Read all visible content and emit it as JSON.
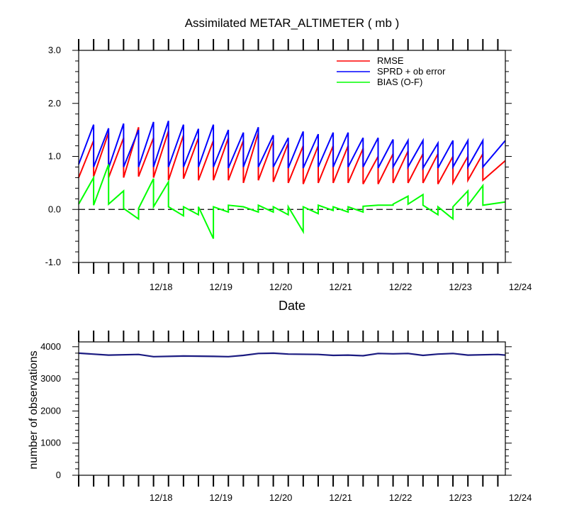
{
  "chart_data": [
    {
      "type": "line",
      "title": "Assimilated METAR_ALTIMETER ( mb )",
      "xlabel": "Date",
      "ylabel": "",
      "xlim": [
        "12/17 03:00",
        "12/24 06:00"
      ],
      "ylim": [
        -1.0,
        3.0
      ],
      "y_ticks": [
        "-1.0",
        "0.0",
        "1.0",
        "2.0",
        "3.0"
      ],
      "x_tick_labels": [
        "12/18",
        "12/19",
        "12/20",
        "12/21",
        "12/22",
        "12/23",
        "12/24"
      ],
      "x_minor_tick_interval_hours": 6,
      "legend_position": "top-right",
      "zero_line": "dashed",
      "series": [
        {
          "name": "RMSE",
          "color": "#ff0000",
          "points": [
            [
              "12/17 03:00",
              0.6
            ],
            [
              "12/17 09:00",
              1.3
            ],
            [
              "12/17 09:00",
              0.62
            ],
            [
              "12/17 15:00",
              1.45
            ],
            [
              "12/17 15:00",
              0.6
            ],
            [
              "12/17 21:00",
              1.35
            ],
            [
              "12/17 21:00",
              0.6
            ],
            [
              "12/18 03:00",
              1.55
            ],
            [
              "12/18 03:00",
              0.62
            ],
            [
              "12/18 09:00",
              1.35
            ],
            [
              "12/18 09:00",
              0.6
            ],
            [
              "12/18 15:00",
              1.48
            ],
            [
              "12/18 15:00",
              0.55
            ],
            [
              "12/18 21:00",
              1.4
            ],
            [
              "12/18 21:00",
              0.58
            ],
            [
              "12/19 03:00",
              1.35
            ],
            [
              "12/19 03:00",
              0.55
            ],
            [
              "12/19 09:00",
              1.3
            ],
            [
              "12/19 09:00",
              0.55
            ],
            [
              "12/19 15:00",
              1.35
            ],
            [
              "12/19 15:00",
              0.55
            ],
            [
              "12/19 21:00",
              1.3
            ],
            [
              "12/19 21:00",
              0.5
            ],
            [
              "12/20 03:00",
              1.45
            ],
            [
              "12/20 03:00",
              0.55
            ],
            [
              "12/20 09:00",
              1.3
            ],
            [
              "12/20 09:00",
              0.52
            ],
            [
              "12/20 15:00",
              1.25
            ],
            [
              "12/20 15:00",
              0.5
            ],
            [
              "12/20 21:00",
              1.2
            ],
            [
              "12/20 21:00",
              0.48
            ],
            [
              "12/21 03:00",
              1.2
            ],
            [
              "12/21 03:00",
              0.5
            ],
            [
              "12/21 09:00",
              1.2
            ],
            [
              "12/21 09:00",
              0.5
            ],
            [
              "12/21 15:00",
              1.2
            ],
            [
              "12/21 15:00",
              0.5
            ],
            [
              "12/21 21:00",
              1.15
            ],
            [
              "12/21 21:00",
              0.48
            ],
            [
              "12/22 03:00",
              1.0
            ],
            [
              "12/22 03:00",
              0.48
            ],
            [
              "12/22 09:00",
              1.05
            ],
            [
              "12/22 09:00",
              0.5
            ],
            [
              "12/22 15:00",
              1.1
            ],
            [
              "12/22 15:00",
              0.5
            ],
            [
              "12/22 21:00",
              1.05
            ],
            [
              "12/22 21:00",
              0.5
            ],
            [
              "12/23 03:00",
              1.05
            ],
            [
              "12/23 03:00",
              0.48
            ],
            [
              "12/23 09:00",
              1.0
            ],
            [
              "12/23 09:00",
              0.5
            ],
            [
              "12/23 15:00",
              1.0
            ],
            [
              "12/23 15:00",
              0.55
            ],
            [
              "12/23 21:00",
              1.05
            ],
            [
              "12/23 21:00",
              0.55
            ],
            [
              "12/24 06:00",
              0.92
            ]
          ]
        },
        {
          "name": "SPRD + ob error",
          "color": "#0000ff",
          "points": [
            [
              "12/17 03:00",
              0.85
            ],
            [
              "12/17 09:00",
              1.6
            ],
            [
              "12/17 09:00",
              0.8
            ],
            [
              "12/17 15:00",
              1.53
            ],
            [
              "12/17 15:00",
              0.78
            ],
            [
              "12/17 21:00",
              1.62
            ],
            [
              "12/17 21:00",
              0.8
            ],
            [
              "12/18 03:00",
              1.5
            ],
            [
              "12/18 03:00",
              0.8
            ],
            [
              "12/18 09:00",
              1.65
            ],
            [
              "12/18 09:00",
              0.8
            ],
            [
              "12/18 15:00",
              1.67
            ],
            [
              "12/18 15:00",
              0.8
            ],
            [
              "12/18 21:00",
              1.6
            ],
            [
              "12/18 21:00",
              0.8
            ],
            [
              "12/19 03:00",
              1.52
            ],
            [
              "12/19 03:00",
              0.8
            ],
            [
              "12/19 09:00",
              1.6
            ],
            [
              "12/19 09:00",
              0.8
            ],
            [
              "12/19 15:00",
              1.5
            ],
            [
              "12/19 15:00",
              0.78
            ],
            [
              "12/19 21:00",
              1.45
            ],
            [
              "12/19 21:00",
              0.8
            ],
            [
              "12/20 03:00",
              1.55
            ],
            [
              "12/20 03:00",
              0.8
            ],
            [
              "12/20 09:00",
              1.4
            ],
            [
              "12/20 09:00",
              0.8
            ],
            [
              "12/20 15:00",
              1.35
            ],
            [
              "12/20 15:00",
              0.78
            ],
            [
              "12/20 21:00",
              1.47
            ],
            [
              "12/20 21:00",
              0.78
            ],
            [
              "12/21 03:00",
              1.42
            ],
            [
              "12/21 03:00",
              0.8
            ],
            [
              "12/21 09:00",
              1.45
            ],
            [
              "12/21 09:00",
              0.8
            ],
            [
              "12/21 15:00",
              1.45
            ],
            [
              "12/21 15:00",
              0.8
            ],
            [
              "12/21 21:00",
              1.35
            ],
            [
              "12/21 21:00",
              0.8
            ],
            [
              "12/22 03:00",
              1.35
            ],
            [
              "12/22 03:00",
              0.78
            ],
            [
              "12/22 09:00",
              1.32
            ],
            [
              "12/22 09:00",
              0.8
            ],
            [
              "12/22 15:00",
              1.3
            ],
            [
              "12/22 15:00",
              0.8
            ],
            [
              "12/22 21:00",
              1.3
            ],
            [
              "12/22 21:00",
              0.78
            ],
            [
              "12/23 03:00",
              1.25
            ],
            [
              "12/23 03:00",
              0.78
            ],
            [
              "12/23 09:00",
              1.3
            ],
            [
              "12/23 09:00",
              0.8
            ],
            [
              "12/23 15:00",
              1.3
            ],
            [
              "12/23 15:00",
              0.8
            ],
            [
              "12/23 21:00",
              1.3
            ],
            [
              "12/23 21:00",
              0.8
            ],
            [
              "12/24 06:00",
              1.3
            ]
          ]
        },
        {
          "name": "BIAS (O-F)",
          "color": "#00ff00",
          "points": [
            [
              "12/17 03:00",
              0.1
            ],
            [
              "12/17 09:00",
              0.6
            ],
            [
              "12/17 09:00",
              0.08
            ],
            [
              "12/17 15:00",
              0.85
            ],
            [
              "12/17 15:00",
              0.1
            ],
            [
              "12/17 21:00",
              0.35
            ],
            [
              "12/17 21:00",
              0.02
            ],
            [
              "12/18 03:00",
              -0.18
            ],
            [
              "12/18 03:00",
              0.02
            ],
            [
              "12/18 09:00",
              0.58
            ],
            [
              "12/18 09:00",
              0.05
            ],
            [
              "12/18 15:00",
              0.52
            ],
            [
              "12/18 15:00",
              0.05
            ],
            [
              "12/18 21:00",
              -0.12
            ],
            [
              "12/18 21:00",
              0.05
            ],
            [
              "12/19 03:00",
              -0.1
            ],
            [
              "12/19 03:00",
              0.05
            ],
            [
              "12/19 09:00",
              -0.55
            ],
            [
              "12/19 09:00",
              0.05
            ],
            [
              "12/19 15:00",
              -0.05
            ],
            [
              "12/19 15:00",
              0.08
            ],
            [
              "12/19 21:00",
              0.05
            ],
            [
              "12/19 21:00",
              0.05
            ],
            [
              "12/20 03:00",
              -0.05
            ],
            [
              "12/20 03:00",
              0.08
            ],
            [
              "12/20 09:00",
              -0.05
            ],
            [
              "12/20 09:00",
              0.05
            ],
            [
              "12/20 15:00",
              -0.1
            ],
            [
              "12/20 15:00",
              0.05
            ],
            [
              "12/20 21:00",
              -0.42
            ],
            [
              "12/20 21:00",
              0.05
            ],
            [
              "12/21 03:00",
              -0.08
            ],
            [
              "12/21 03:00",
              0.08
            ],
            [
              "12/21 09:00",
              -0.02
            ],
            [
              "12/21 09:00",
              0.05
            ],
            [
              "12/21 15:00",
              -0.05
            ],
            [
              "12/21 15:00",
              0.05
            ],
            [
              "12/21 21:00",
              -0.05
            ],
            [
              "12/21 21:00",
              0.06
            ],
            [
              "12/22 03:00",
              0.08
            ],
            [
              "12/22 03:00",
              0.08
            ],
            [
              "12/22 09:00",
              0.08
            ],
            [
              "12/22 09:00",
              0.1
            ],
            [
              "12/22 15:00",
              0.25
            ],
            [
              "12/22 15:00",
              0.1
            ],
            [
              "12/22 21:00",
              0.28
            ],
            [
              "12/22 21:00",
              0.08
            ],
            [
              "12/23 03:00",
              -0.1
            ],
            [
              "12/23 03:00",
              0.05
            ],
            [
              "12/23 09:00",
              -0.18
            ],
            [
              "12/23 09:00",
              0.05
            ],
            [
              "12/23 15:00",
              0.35
            ],
            [
              "12/23 15:00",
              0.08
            ],
            [
              "12/23 21:00",
              0.45
            ],
            [
              "12/23 21:00",
              0.08
            ],
            [
              "12/24 06:00",
              0.14
            ]
          ]
        }
      ]
    },
    {
      "type": "line",
      "title": "",
      "xlabel": "",
      "ylabel": "number of observations",
      "xlim": [
        "12/17 03:00",
        "12/24 06:00"
      ],
      "ylim": [
        0,
        4150
      ],
      "y_ticks": [
        "0",
        "1000",
        "2000",
        "3000",
        "4000"
      ],
      "x_tick_labels": [
        "12/18",
        "12/19",
        "12/20",
        "12/21",
        "12/22",
        "12/23",
        "12/24"
      ],
      "x_minor_tick_interval_hours": 6,
      "series": [
        {
          "color": "#1a1a80",
          "points": [
            [
              "12/17 03:00",
              3800
            ],
            [
              "12/17 15:00",
              3740
            ],
            [
              "12/18 03:00",
              3760
            ],
            [
              "12/18 09:00",
              3690
            ],
            [
              "12/18 21:00",
              3710
            ],
            [
              "12/19 09:00",
              3700
            ],
            [
              "12/19 15:00",
              3690
            ],
            [
              "12/19 21:00",
              3730
            ],
            [
              "12/20 03:00",
              3790
            ],
            [
              "12/20 09:00",
              3800
            ],
            [
              "12/20 15:00",
              3770
            ],
            [
              "12/21 03:00",
              3760
            ],
            [
              "12/21 09:00",
              3730
            ],
            [
              "12/21 15:00",
              3740
            ],
            [
              "12/21 21:00",
              3720
            ],
            [
              "12/22 03:00",
              3790
            ],
            [
              "12/22 09:00",
              3780
            ],
            [
              "12/22 15:00",
              3790
            ],
            [
              "12/22 21:00",
              3730
            ],
            [
              "12/23 03:00",
              3770
            ],
            [
              "12/23 09:00",
              3790
            ],
            [
              "12/23 15:00",
              3740
            ],
            [
              "12/24 03:00",
              3760
            ],
            [
              "12/24 06:00",
              3740
            ]
          ]
        }
      ]
    }
  ]
}
